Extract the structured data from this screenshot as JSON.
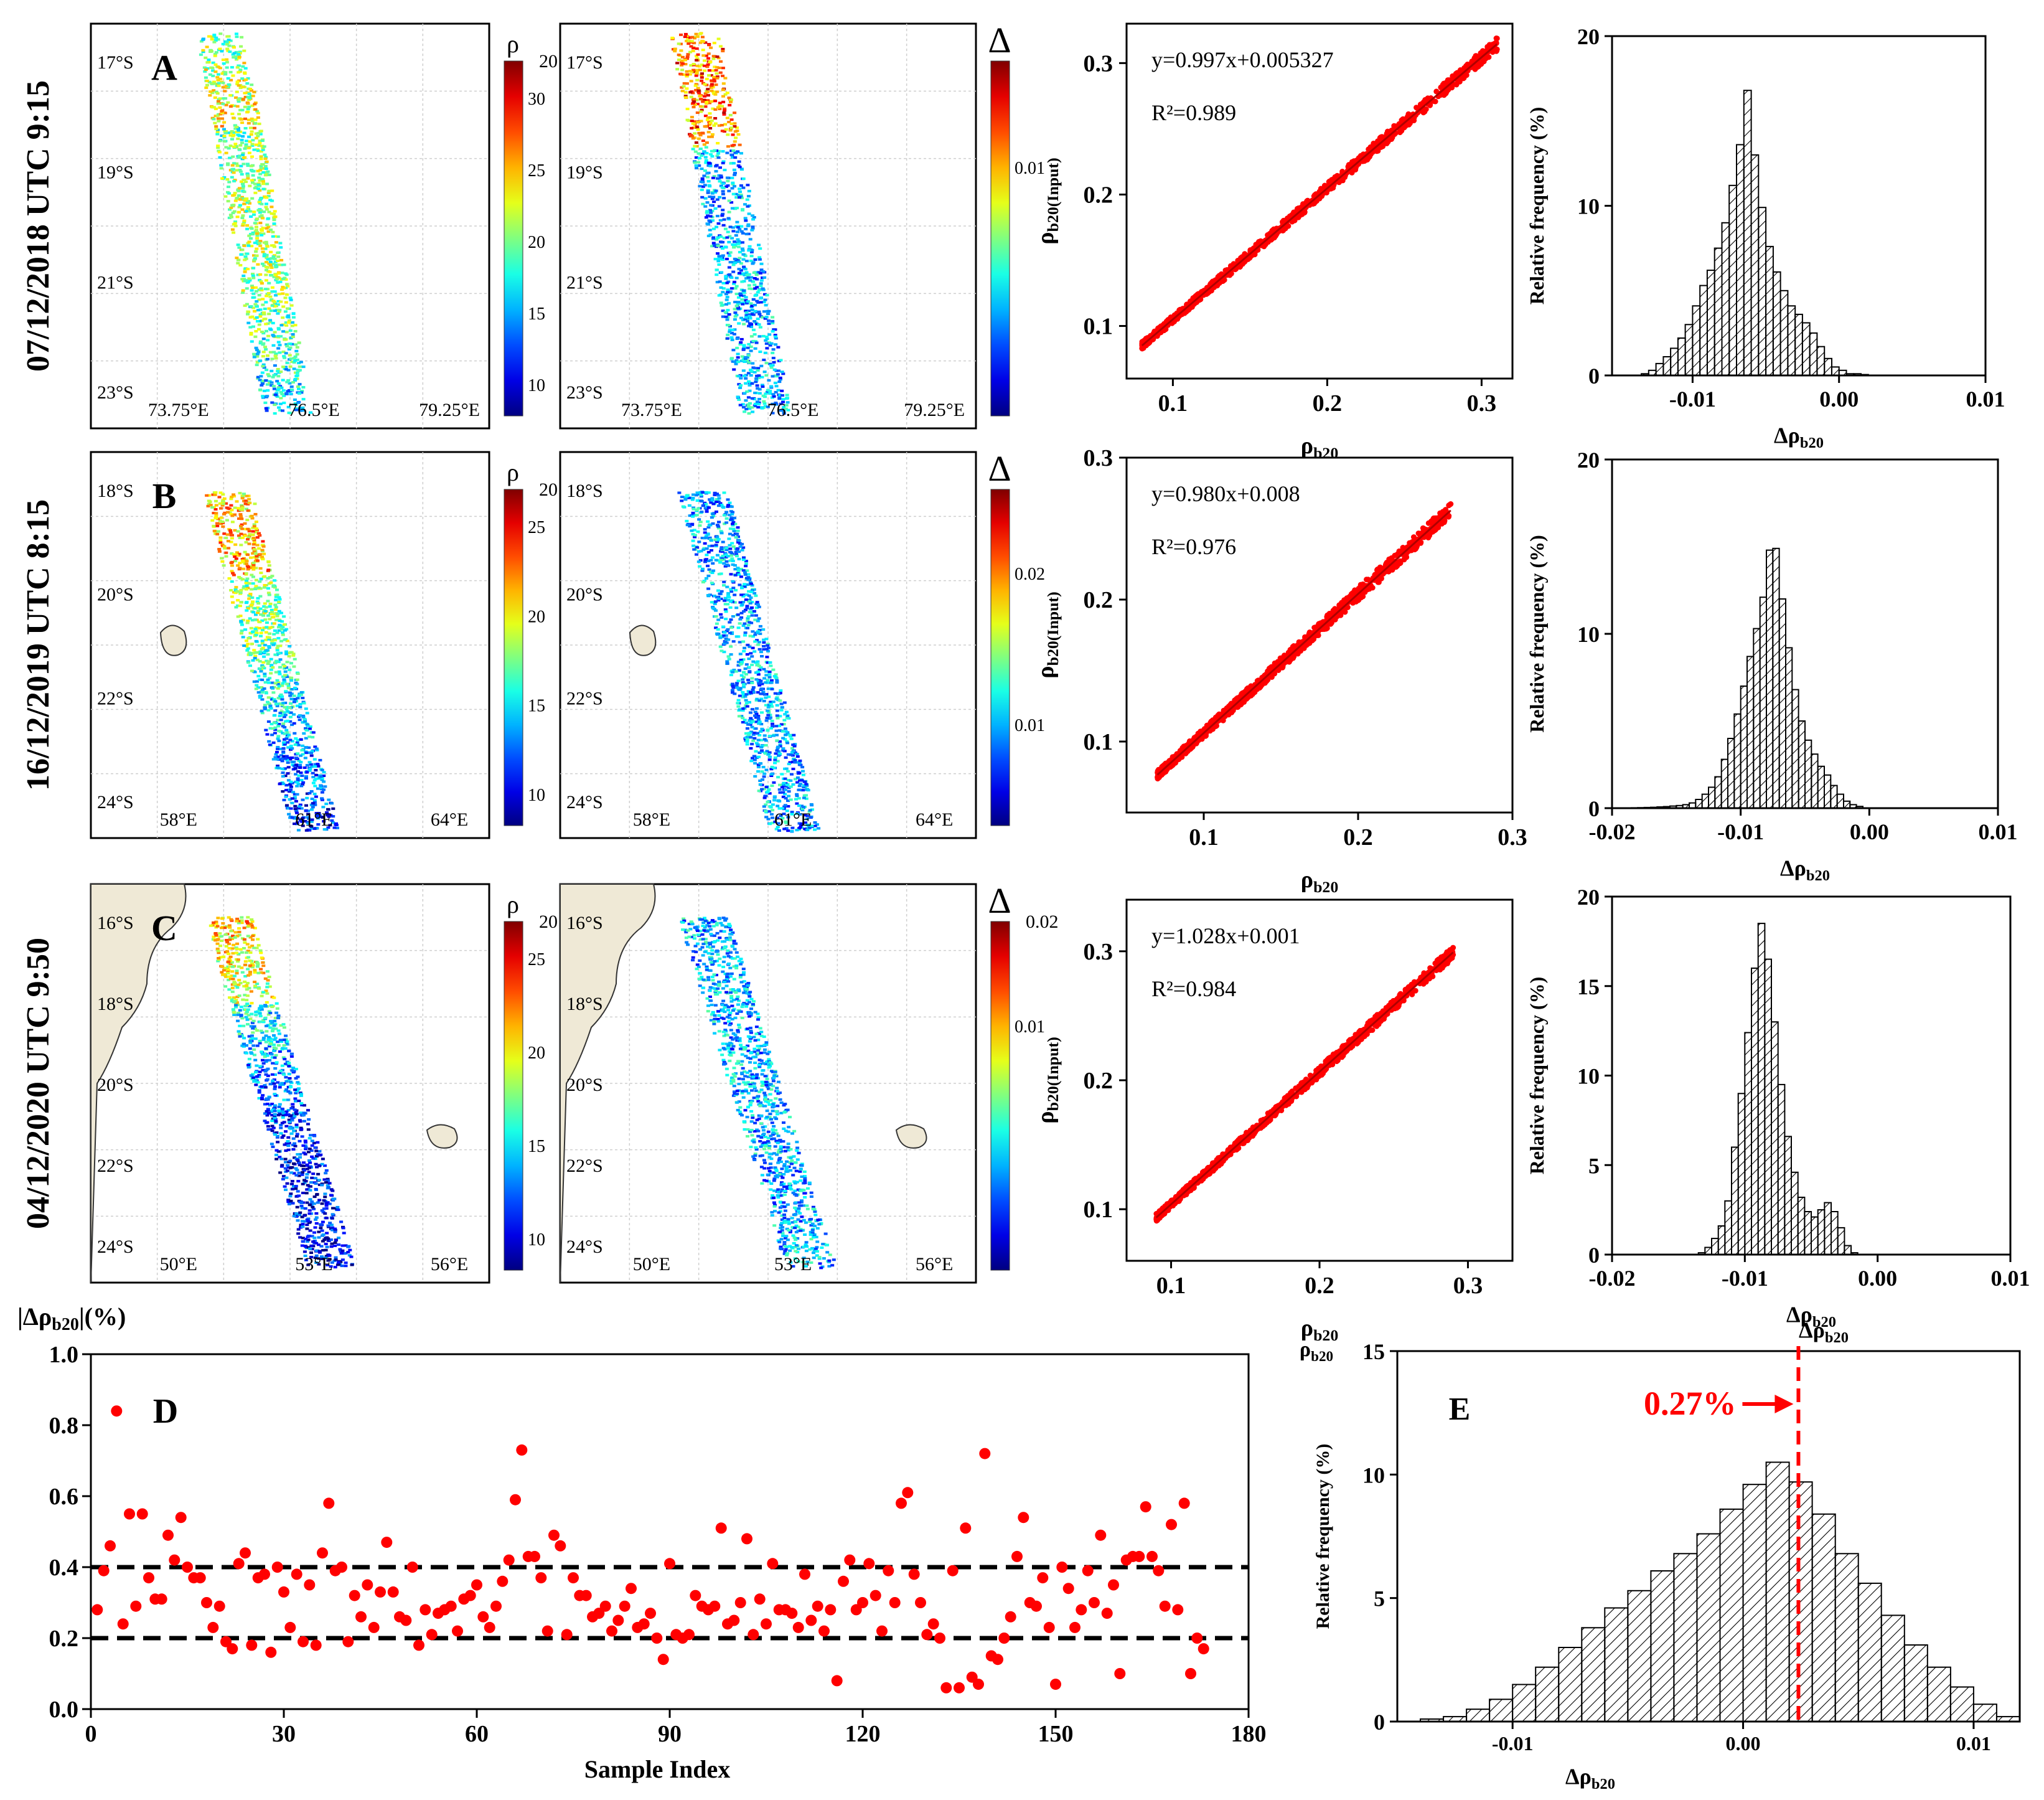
{
  "colors": {
    "accent": "#ff0000",
    "land": "#efe9d6",
    "black": "#000000"
  },
  "rows": [
    {
      "label": "A",
      "date_label": "07/12/2018 UTC 9:15",
      "lat_ticks": [
        "17°S",
        "19°S",
        "21°S",
        "23°S"
      ],
      "lon_ticks": [
        "73.75°E",
        "76.5°E",
        "79.25°E"
      ],
      "lat_ticks_delta": [
        "17°S",
        "19°S",
        "21°S",
        "23°S"
      ],
      "colorbar_rho": {
        "title": "ρ",
        "top_label": "20",
        "ticks": [
          "30",
          "25",
          "20",
          "15",
          "10"
        ]
      },
      "colorbar_delta": {
        "title": "Δ",
        "ticks": [
          "0.01"
        ]
      }
    },
    {
      "label": "B",
      "date_label": "16/12/2019 UTC 8:15",
      "lat_ticks": [
        "18°S",
        "20°S",
        "22°S",
        "24°S"
      ],
      "lon_ticks": [
        "58°E",
        "61°E",
        "64°E"
      ],
      "lat_ticks_delta": [
        "18°S",
        "20°S",
        "22°S",
        "24°S"
      ],
      "colorbar_rho": {
        "title": "ρ",
        "top_label": "20",
        "ticks": [
          "25",
          "20",
          "15",
          "10"
        ]
      },
      "colorbar_delta": {
        "title": "Δ",
        "ticks": [
          "0.02",
          "0.01"
        ]
      }
    },
    {
      "label": "C",
      "date_label": "04/12/2020 UTC 9:50",
      "lat_ticks": [
        "16°S",
        "18°S",
        "20°S",
        "22°S",
        "24°S"
      ],
      "lon_ticks": [
        "50°E",
        "53°E",
        "56°E"
      ],
      "lat_ticks_delta": [
        "16°S",
        "18°S",
        "20°S",
        "22°S",
        "24°S"
      ],
      "colorbar_rho": {
        "title": "ρ",
        "top_label": "20",
        "ticks": [
          "25",
          "20",
          "15",
          "10"
        ]
      },
      "colorbar_delta": {
        "title": "Δ",
        "top_label": "0.02",
        "ticks": [
          "0.01"
        ]
      }
    }
  ],
  "chart_data": [
    {
      "type": "scatter",
      "panel": "A",
      "equation": "y=0.997x+0.005327",
      "r2_label": "R²=0.989",
      "slope": 0.997,
      "intercept": 0.005327,
      "r2": 0.989,
      "xlabel": "ρb20",
      "ylabel": "ρb20(Input)",
      "xlim": [
        0.07,
        0.32
      ],
      "ylim": [
        0.06,
        0.33
      ],
      "xticks": [
        "0.1",
        "0.2",
        "0.3"
      ],
      "yticks": [
        "0.1",
        "0.2",
        "0.3"
      ],
      "x_range": [
        0.08,
        0.31
      ]
    },
    {
      "type": "scatter",
      "panel": "B",
      "equation": "y=0.980x+0.008",
      "r2_label": "R²=0.976",
      "slope": 0.98,
      "intercept": 0.008,
      "r2": 0.976,
      "xlabel": "ρb20",
      "ylabel": "ρb20(Input)",
      "xlim": [
        0.05,
        0.3
      ],
      "ylim": [
        0.05,
        0.3
      ],
      "xticks": [
        "0.1",
        "0.2",
        "0.3"
      ],
      "yticks": [
        "0.1",
        "0.2",
        "0.3"
      ],
      "x_range": [
        0.07,
        0.26
      ]
    },
    {
      "type": "scatter",
      "panel": "C",
      "equation": "y=1.028x+0.001",
      "r2_label": "R²=0.984",
      "slope": 1.028,
      "intercept": 0.001,
      "r2": 0.984,
      "xlabel": "ρb20",
      "ylabel": "ρb20(Input)",
      "xlim": [
        0.07,
        0.33
      ],
      "ylim": [
        0.06,
        0.34
      ],
      "xticks": [
        "0.1",
        "0.2",
        "0.3"
      ],
      "yticks": [
        "0.1",
        "0.2",
        "0.3"
      ],
      "x_range": [
        0.09,
        0.29
      ]
    },
    {
      "type": "bar",
      "panel": "A-hist",
      "xlabel": "Δρb20",
      "ylabel": "Relative frequency (%)",
      "xlim": [
        -0.0155,
        0.01
      ],
      "ylim": [
        0,
        20
      ],
      "xticks": [
        "-0.01",
        "0.00",
        "0.01"
      ],
      "yticks": [
        "0",
        "10",
        "20"
      ],
      "bin_start": -0.0135,
      "bin_width": 0.0005,
      "values": [
        0.1,
        0.3,
        0.7,
        1.1,
        1.6,
        2.2,
        3.0,
        4.1,
        5.3,
        6.2,
        7.5,
        9.0,
        11.2,
        13.6,
        16.8,
        13.0,
        9.9,
        7.6,
        6.1,
        5.0,
        4.1,
        3.6,
        3.1,
        2.5,
        1.7,
        1.0,
        0.5,
        0.3,
        0.1,
        0.1,
        0.05
      ]
    },
    {
      "type": "bar",
      "panel": "B-hist",
      "xlabel": "Δρb20",
      "ylabel": "Relative frequency (%)",
      "xlim": [
        -0.02,
        0.01
      ],
      "ylim": [
        0,
        20
      ],
      "xticks": [
        "-0.02",
        "-0.01",
        "0.00",
        "0.01"
      ],
      "yticks": [
        "0",
        "10",
        "20"
      ],
      "bin_start": -0.0185,
      "bin_width": 0.0005,
      "values": [
        0.02,
        0.03,
        0.04,
        0.05,
        0.07,
        0.09,
        0.12,
        0.15,
        0.2,
        0.3,
        0.5,
        0.8,
        1.2,
        1.8,
        2.8,
        4.0,
        5.4,
        7.0,
        8.7,
        10.3,
        12.1,
        14.8,
        14.9,
        12.0,
        9.2,
        6.8,
        5.0,
        3.9,
        3.1,
        2.4,
        1.9,
        1.3,
        0.8,
        0.4,
        0.2,
        0.1
      ]
    },
    {
      "type": "bar",
      "panel": "C-hist",
      "xlabel": "Δρb20",
      "ylabel": "Relative frequency (%)",
      "xlim": [
        -0.02,
        0.01
      ],
      "ylim": [
        0,
        20
      ],
      "xticks": [
        "-0.02",
        "-0.01",
        "0.00",
        "0.01"
      ],
      "yticks": [
        "0",
        "5",
        "10",
        "15",
        "20"
      ],
      "bin_start": -0.0135,
      "bin_width": 0.0005,
      "values": [
        0.1,
        0.4,
        0.9,
        1.6,
        3.0,
        6.0,
        9.0,
        12.4,
        16.0,
        18.5,
        16.5,
        13.0,
        9.5,
        6.6,
        4.6,
        3.2,
        2.4,
        2.1,
        2.5,
        2.9,
        2.4,
        1.5,
        0.5,
        0.1
      ]
    },
    {
      "type": "scatter",
      "panel": "D",
      "xlabel": "Sample Index",
      "ylabel": "|Δρb20|(%)",
      "xlim": [
        0,
        180
      ],
      "ylim": [
        0,
        1.0
      ],
      "xticks": [
        "0",
        "30",
        "60",
        "90",
        "120",
        "150",
        "180"
      ],
      "yticks": [
        "0.0",
        "0.2",
        "0.4",
        "0.6",
        "0.8",
        "1.0"
      ],
      "reference_lines": [
        0.2,
        0.4
      ],
      "values": [
        0.28,
        0.39,
        0.46,
        0.84,
        0.24,
        0.55,
        0.29,
        0.55,
        0.37,
        0.31,
        0.31,
        0.49,
        0.42,
        0.54,
        0.4,
        0.37,
        0.37,
        0.3,
        0.23,
        0.29,
        0.19,
        0.17,
        0.41,
        0.44,
        0.18,
        0.37,
        0.38,
        0.16,
        0.4,
        0.33,
        0.23,
        0.38,
        0.19,
        0.35,
        0.18,
        0.44,
        0.58,
        0.39,
        0.4,
        0.19,
        0.32,
        0.26,
        0.35,
        0.23,
        0.33,
        0.47,
        0.33,
        0.26,
        0.25,
        0.4,
        0.18,
        0.28,
        0.21,
        0.27,
        0.28,
        0.29,
        0.22,
        0.31,
        0.32,
        0.35,
        0.26,
        0.23,
        0.29,
        0.36,
        0.42,
        0.59,
        0.73,
        0.43,
        0.43,
        0.37,
        0.22,
        0.49,
        0.46,
        0.21,
        0.37,
        0.32,
        0.32,
        0.26,
        0.27,
        0.29,
        0.22,
        0.25,
        0.29,
        0.34,
        0.23,
        0.24,
        0.27,
        0.2,
        0.14,
        0.41,
        0.21,
        0.2,
        0.21,
        0.32,
        0.29,
        0.28,
        0.29,
        0.51,
        0.24,
        0.25,
        0.3,
        0.48,
        0.21,
        0.31,
        0.24,
        0.41,
        0.28,
        0.28,
        0.27,
        0.23,
        0.38,
        0.25,
        0.29,
        0.22,
        0.28,
        0.08,
        0.36,
        0.42,
        0.28,
        0.3,
        0.41,
        0.32,
        0.22,
        0.39,
        0.3,
        0.58,
        0.61,
        0.38,
        0.3,
        0.21,
        0.24,
        0.2,
        0.06,
        0.39,
        0.06,
        0.51,
        0.09,
        0.07,
        0.72,
        0.15,
        0.14,
        0.2,
        0.26,
        0.43,
        0.54,
        0.3,
        0.29,
        0.37,
        0.23,
        0.07,
        0.4,
        0.34,
        0.23,
        0.28,
        0.39,
        0.3,
        0.49,
        0.27,
        0.35,
        0.1,
        0.42,
        0.43,
        0.43,
        0.57,
        0.43,
        0.39,
        0.29,
        0.52,
        0.28,
        0.58,
        0.1,
        0.2,
        0.17
      ],
      "label": "D"
    },
    {
      "type": "bar",
      "panel": "E",
      "xlabel": "Δρb20",
      "ylabel": "Relative frequency (%)",
      "corner_label": "ρb20",
      "xlim": [
        -0.015,
        0.012
      ],
      "ylim": [
        0,
        15
      ],
      "xticks": [
        "-0.01",
        "0.00",
        "0.01"
      ],
      "yticks": [
        "0",
        "5",
        "10",
        "15"
      ],
      "bin_start": -0.014,
      "bin_width": 0.001,
      "values": [
        0.1,
        0.2,
        0.5,
        0.9,
        1.5,
        2.2,
        3.0,
        3.8,
        4.6,
        5.3,
        6.1,
        6.8,
        7.6,
        8.6,
        9.6,
        10.5,
        9.7,
        8.4,
        6.8,
        5.6,
        4.3,
        3.1,
        2.2,
        1.4,
        0.7,
        0.2
      ],
      "reference_x": 0.0024,
      "annotation": "0.27%",
      "label": "E"
    }
  ]
}
